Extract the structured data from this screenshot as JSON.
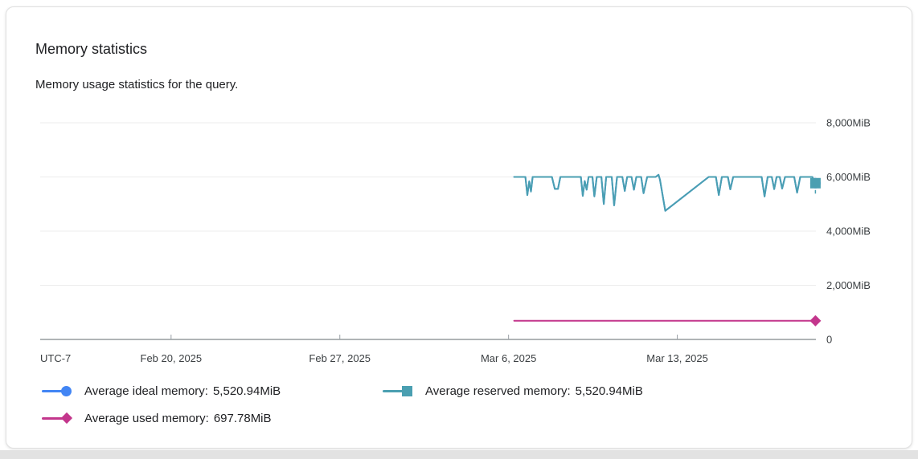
{
  "card": {
    "title": "Memory statistics",
    "subtitle": "Memory usage statistics for the query."
  },
  "legend": {
    "items": [
      {
        "series": "ideal",
        "label": "Average ideal memory:",
        "value": "5,520.94MiB"
      },
      {
        "series": "reserved",
        "label": "Average reserved memory:",
        "value": "5,520.94MiB"
      },
      {
        "series": "used",
        "label": "Average used memory:",
        "value": "697.78MiB"
      }
    ]
  },
  "chart_data": {
    "type": "line",
    "title": "Memory statistics",
    "ylabel": "MiB",
    "grid": true,
    "legend_position": "bottom-left",
    "y_axis": {
      "max": 8000,
      "ticks": [
        {
          "label": "0",
          "value": 0
        },
        {
          "label": "2,000MiB",
          "value": 2000
        },
        {
          "label": "4,000MiB",
          "value": 4000
        },
        {
          "label": "6,000MiB",
          "value": 6000
        },
        {
          "label": "8,000MiB",
          "value": 8000
        }
      ]
    },
    "x_axis": {
      "timezone_label": "UTC-7",
      "start_day": -19.43,
      "end_day": 12.75,
      "ticks": [
        {
          "label": "Feb 20, 2025",
          "day": -14
        },
        {
          "label": "Feb 27, 2025",
          "day": -7
        },
        {
          "label": "Mar 6, 2025",
          "day": 0
        },
        {
          "label": "Mar 13, 2025",
          "day": 7
        }
      ]
    },
    "series": [
      {
        "id": "ideal",
        "name": "Average ideal memory",
        "average": 5520.94,
        "average_label": "5,520.94MiB",
        "color": "#4285F4",
        "marker": "circle",
        "points_same_as": "reserved"
      },
      {
        "id": "reserved",
        "name": "Average reserved memory",
        "average": 5520.94,
        "average_label": "5,520.94MiB",
        "color": "#4A9FB1",
        "marker": "square",
        "points": [
          [
            0.23,
            6000
          ],
          [
            0.7,
            6000
          ],
          [
            0.78,
            5330
          ],
          [
            0.86,
            5840
          ],
          [
            0.93,
            5460
          ],
          [
            1.0,
            6000
          ],
          [
            1.8,
            6000
          ],
          [
            1.92,
            5560
          ],
          [
            2.05,
            5560
          ],
          [
            2.15,
            6000
          ],
          [
            3.0,
            6000
          ],
          [
            3.08,
            5300
          ],
          [
            3.16,
            5850
          ],
          [
            3.24,
            5530
          ],
          [
            3.32,
            6000
          ],
          [
            3.48,
            6000
          ],
          [
            3.56,
            5280
          ],
          [
            3.66,
            6000
          ],
          [
            3.85,
            6000
          ],
          [
            3.95,
            5000
          ],
          [
            4.05,
            6000
          ],
          [
            4.28,
            6000
          ],
          [
            4.38,
            4950
          ],
          [
            4.5,
            6000
          ],
          [
            4.72,
            6000
          ],
          [
            4.82,
            5480
          ],
          [
            4.92,
            6000
          ],
          [
            5.1,
            6000
          ],
          [
            5.2,
            5530
          ],
          [
            5.3,
            6000
          ],
          [
            5.5,
            6000
          ],
          [
            5.6,
            5400
          ],
          [
            5.75,
            6000
          ],
          [
            6.1,
            6000
          ],
          [
            6.22,
            6080
          ],
          [
            6.28,
            5900
          ],
          [
            6.5,
            4750
          ],
          [
            8.3,
            6000
          ],
          [
            8.6,
            6000
          ],
          [
            8.72,
            5330
          ],
          [
            8.85,
            6000
          ],
          [
            9.1,
            6000
          ],
          [
            9.2,
            5540
          ],
          [
            9.32,
            6000
          ],
          [
            9.45,
            6000
          ],
          [
            10.5,
            6000
          ],
          [
            10.62,
            5280
          ],
          [
            10.75,
            6000
          ],
          [
            10.92,
            6000
          ],
          [
            11.02,
            5550
          ],
          [
            11.12,
            6000
          ],
          [
            11.25,
            6000
          ],
          [
            11.35,
            5570
          ],
          [
            11.47,
            6000
          ],
          [
            11.85,
            6000
          ],
          [
            11.97,
            5420
          ],
          [
            12.1,
            6000
          ],
          [
            12.45,
            6000
          ],
          [
            12.6,
            6000
          ],
          [
            12.73,
            5770
          ]
        ]
      },
      {
        "id": "used",
        "name": "Average used memory",
        "average": 697.78,
        "average_label": "697.78MiB",
        "color": "#C3368C",
        "marker": "diamond",
        "points": [
          [
            0.23,
            690
          ],
          [
            12.73,
            690
          ]
        ]
      }
    ]
  }
}
